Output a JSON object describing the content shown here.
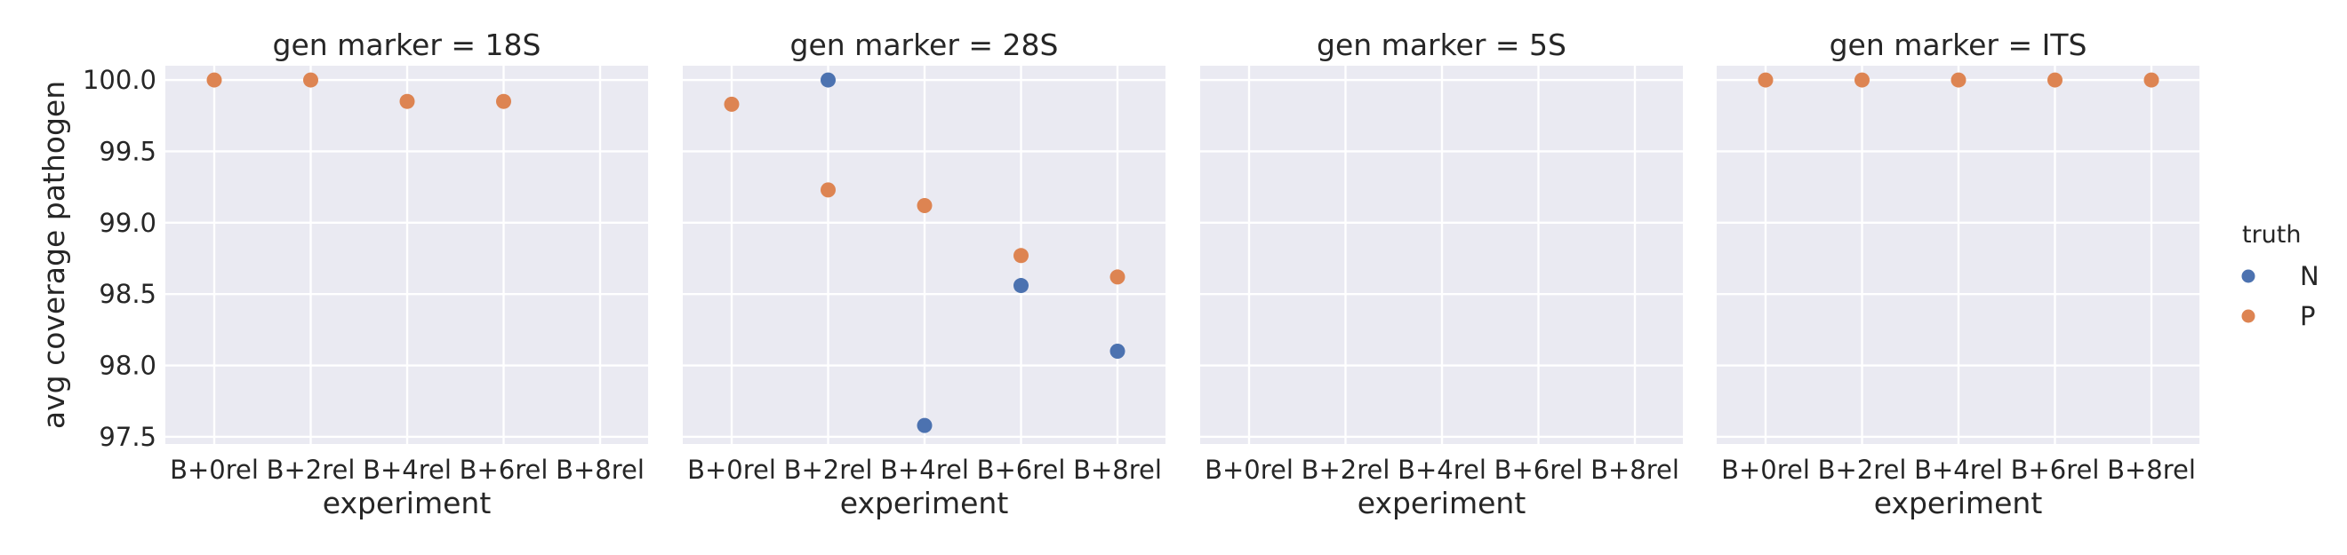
{
  "chart_data": {
    "type": "scatter",
    "facet_label": "gen marker",
    "xlabel": "experiment",
    "ylabel": "avg coverage pathogen",
    "categories": [
      "B+0rel",
      "B+2rel",
      "B+4rel",
      "B+6rel",
      "B+8rel"
    ],
    "ylim": [
      97.45,
      100.1
    ],
    "yticks": [
      97.5,
      98.0,
      98.5,
      99.0,
      99.5,
      100.0
    ],
    "ytick_labels": [
      "97.5",
      "98.0",
      "98.5",
      "99.0",
      "99.5",
      "100.0"
    ],
    "grid": true,
    "legend": {
      "title": "truth",
      "placement": "right",
      "entries": [
        {
          "label": "N",
          "color": "#4c72b0"
        },
        {
          "label": "P",
          "color": "#dd8452"
        }
      ]
    },
    "panels": [
      {
        "title": "gen marker = 18S",
        "points": [
          {
            "x": "B+0rel",
            "y": 100.0,
            "truth": "P"
          },
          {
            "x": "B+2rel",
            "y": 100.0,
            "truth": "P"
          },
          {
            "x": "B+4rel",
            "y": 99.85,
            "truth": "P"
          },
          {
            "x": "B+6rel",
            "y": 99.85,
            "truth": "P"
          }
        ]
      },
      {
        "title": "gen marker = 28S",
        "points": [
          {
            "x": "B+0rel",
            "y": 99.83,
            "truth": "P"
          },
          {
            "x": "B+2rel",
            "y": 100.0,
            "truth": "N"
          },
          {
            "x": "B+2rel",
            "y": 99.23,
            "truth": "P"
          },
          {
            "x": "B+4rel",
            "y": 97.58,
            "truth": "N"
          },
          {
            "x": "B+4rel",
            "y": 99.12,
            "truth": "P"
          },
          {
            "x": "B+6rel",
            "y": 98.56,
            "truth": "N"
          },
          {
            "x": "B+6rel",
            "y": 98.77,
            "truth": "P"
          },
          {
            "x": "B+8rel",
            "y": 98.1,
            "truth": "N"
          },
          {
            "x": "B+8rel",
            "y": 98.62,
            "truth": "P"
          }
        ]
      },
      {
        "title": "gen marker = 5S",
        "points": []
      },
      {
        "title": "gen marker = ITS",
        "points": [
          {
            "x": "B+0rel",
            "y": 100.0,
            "truth": "P"
          },
          {
            "x": "B+2rel",
            "y": 100.0,
            "truth": "P"
          },
          {
            "x": "B+4rel",
            "y": 100.0,
            "truth": "P"
          },
          {
            "x": "B+6rel",
            "y": 100.0,
            "truth": "P"
          },
          {
            "x": "B+8rel",
            "y": 100.0,
            "truth": "P"
          }
        ]
      }
    ]
  }
}
